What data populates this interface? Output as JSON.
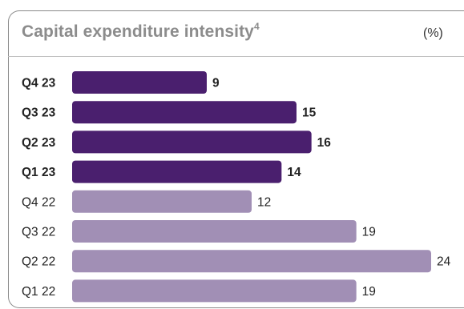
{
  "chart_data": {
    "type": "bar",
    "orientation": "horizontal",
    "title": "Capital expenditure intensity",
    "title_superscript": "4",
    "unit": "(%)",
    "categories": [
      "Q4 23",
      "Q3 23",
      "Q2 23",
      "Q1 23",
      "Q4 22",
      "Q3 22",
      "Q2 22",
      "Q1 22"
    ],
    "values": [
      9,
      15,
      16,
      14,
      12,
      19,
      24,
      19
    ],
    "highlight": [
      true,
      true,
      true,
      true,
      false,
      false,
      false,
      false
    ],
    "xlim": [
      0,
      24
    ],
    "grid": false,
    "colors": {
      "current_year": "#4a1f6e",
      "prior_year": "#a18fb5"
    }
  }
}
